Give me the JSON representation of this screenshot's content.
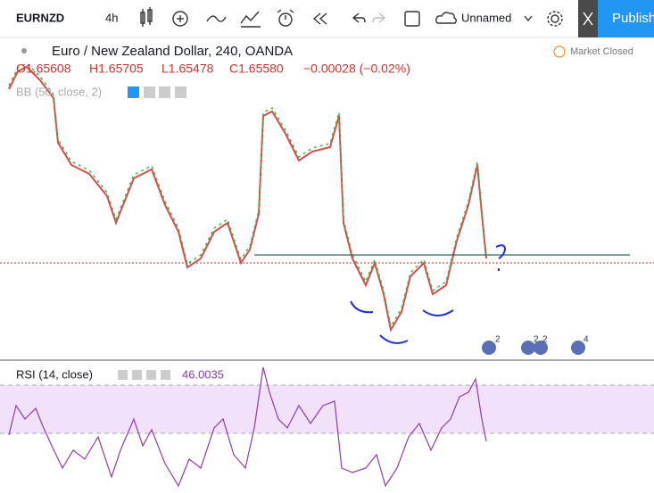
{
  "toolbar": {
    "symbol": "EURNZD",
    "interval": "4h",
    "layout_name": "Unnamed",
    "publish": "Publish"
  },
  "legend": {
    "title": "Euro / New Zealand Dollar, 240, OANDA",
    "status": "Market Closed",
    "ohlc": [
      "O1.65608",
      "H1.65705",
      "L1.65478",
      "C1.65580",
      "−0.00028 (−0.02%)"
    ],
    "indicator": "BB (50, close, 2)"
  },
  "events": [
    "2",
    "2",
    "2",
    "4"
  ],
  "rsi": {
    "label": "RSI (14, close)",
    "value": "46.0035"
  }
}
